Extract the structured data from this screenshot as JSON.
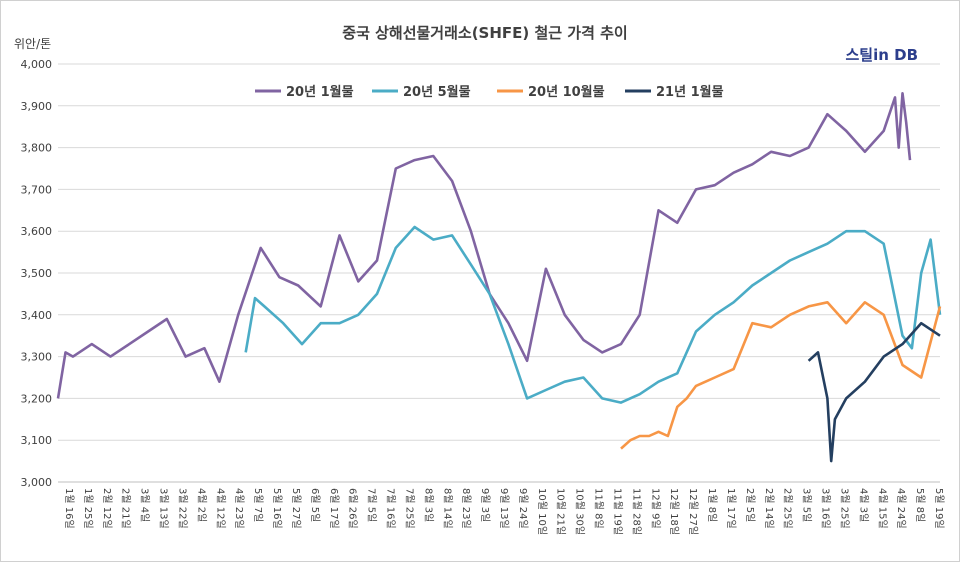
{
  "chart_data": {
    "type": "line",
    "title": "중국 상해선물거래소(SHFE) 철근 가격 추이",
    "ylabel": "위안/톤",
    "brand": "스틸in DB",
    "ylim": [
      3000,
      4000
    ],
    "yticks": [
      "3,000",
      "3,100",
      "3,200",
      "3,300",
      "3,400",
      "3,500",
      "3,600",
      "3,700",
      "3,800",
      "3,900",
      "4,000"
    ],
    "grid": true,
    "legend_position": "top",
    "x_tick_labels": [
      "1월 16일",
      "1월 25일",
      "2월 12일",
      "2월 21일",
      "3월 4일",
      "3월 13일",
      "3월 22일",
      "4월 2일",
      "4월 12일",
      "4월 23일",
      "5월 7일",
      "5월 16일",
      "5월 27일",
      "6월 5일",
      "6월 17일",
      "6월 26일",
      "7월 5일",
      "7월 16일",
      "7월 25일",
      "8월 3일",
      "8월 14일",
      "8월 23일",
      "9월 3일",
      "9월 13일",
      "9월 24일",
      "10월 10일",
      "10월 21일",
      "10월 30일",
      "11월 8일",
      "11월 19일",
      "11월 28일",
      "12월 9일",
      "12월 18일",
      "12월 27일",
      "1월 8일",
      "1월 17일",
      "2월 5일",
      "2월 14일",
      "2월 25일",
      "3월 5일",
      "3월 16일",
      "3월 25일",
      "4월 3일",
      "4월 15일",
      "4월 24일",
      "5월 8일",
      "5월 19일"
    ],
    "n_points": 470,
    "series": [
      {
        "name": "20년 1월물",
        "color": "#8064a2",
        "x": [
          0,
          4,
          8,
          18,
          28,
          38,
          48,
          58,
          68,
          78,
          86,
          96,
          108,
          118,
          128,
          140,
          150,
          160,
          170,
          180,
          190,
          200,
          210,
          220,
          230,
          240,
          250,
          260,
          270,
          280,
          290,
          300,
          310,
          320,
          330,
          340,
          350,
          360,
          370,
          380,
          390,
          400,
          410,
          420,
          430,
          440,
          446,
          448,
          450,
          452,
          454
        ],
        "y": [
          3200,
          3310,
          3300,
          3330,
          3300,
          3330,
          3360,
          3390,
          3300,
          3320,
          3240,
          3400,
          3560,
          3490,
          3470,
          3420,
          3590,
          3480,
          3530,
          3750,
          3770,
          3780,
          3720,
          3600,
          3450,
          3380,
          3290,
          3510,
          3400,
          3340,
          3310,
          3330,
          3400,
          3650,
          3620,
          3700,
          3710,
          3740,
          3760,
          3790,
          3780,
          3800,
          3880,
          3840,
          3790,
          3840,
          3920,
          3800,
          3930,
          3860,
          3770
        ]
      },
      {
        "name": "20년 5월물",
        "color": "#4bacc6",
        "x": [
          100,
          105,
          110,
          120,
          130,
          140,
          150,
          160,
          170,
          180,
          190,
          200,
          210,
          220,
          230,
          240,
          250,
          260,
          270,
          280,
          290,
          300,
          310,
          320,
          330,
          340,
          350,
          360,
          370,
          380,
          390,
          400,
          410,
          420,
          430,
          440,
          450,
          455,
          460,
          465,
          470
        ],
        "y": [
          3310,
          3440,
          3420,
          3380,
          3330,
          3380,
          3380,
          3400,
          3450,
          3560,
          3610,
          3580,
          3590,
          3520,
          3450,
          3330,
          3200,
          3220,
          3240,
          3250,
          3200,
          3190,
          3210,
          3240,
          3260,
          3360,
          3400,
          3430,
          3470,
          3500,
          3530,
          3550,
          3570,
          3600,
          3600,
          3570,
          3350,
          3320,
          3500,
          3580,
          3400
        ]
      },
      {
        "name": "20년 10월물",
        "color": "#f79646",
        "x": [
          300,
          305,
          310,
          315,
          320,
          325,
          330,
          335,
          340,
          350,
          360,
          370,
          380,
          390,
          400,
          410,
          420,
          430,
          440,
          450,
          460,
          470
        ],
        "y": [
          3080,
          3100,
          3110,
          3110,
          3120,
          3110,
          3180,
          3200,
          3230,
          3250,
          3270,
          3380,
          3370,
          3400,
          3420,
          3430,
          3380,
          3430,
          3400,
          3280,
          3250,
          3420
        ]
      },
      {
        "name": "21년 1월물",
        "color": "#243f60",
        "x": [
          400,
          405,
          410,
          412,
          414,
          420,
          430,
          440,
          450,
          460,
          470
        ],
        "y": [
          3290,
          3310,
          3200,
          3050,
          3150,
          3200,
          3240,
          3300,
          3330,
          3380,
          3350
        ]
      }
    ]
  }
}
